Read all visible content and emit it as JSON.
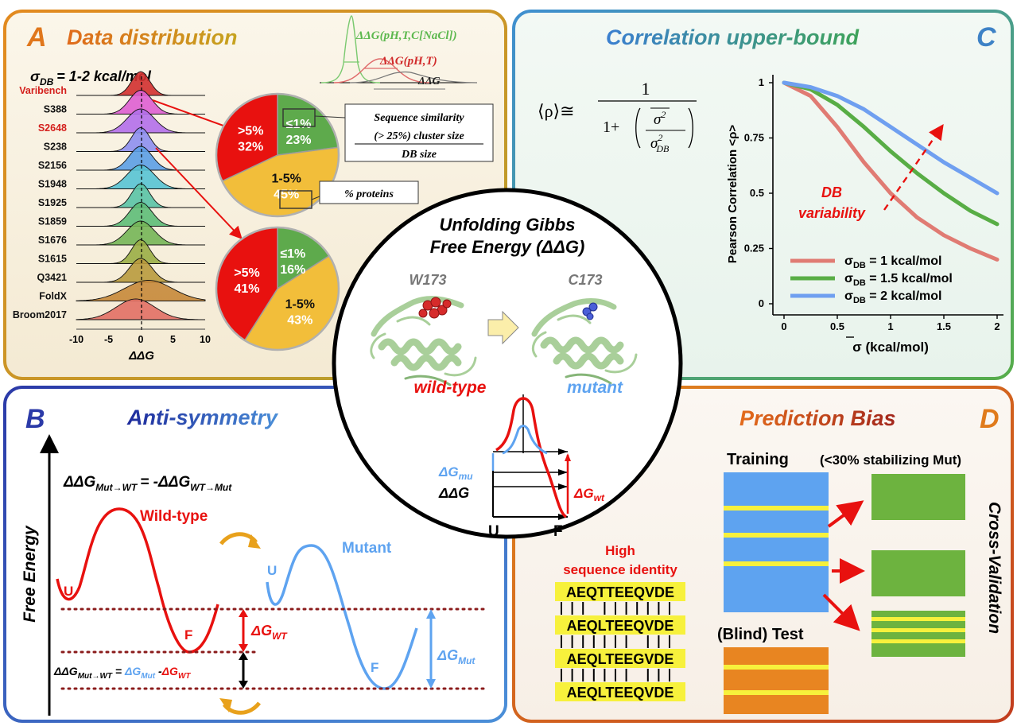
{
  "panel_a": {
    "letter": "A",
    "title": "Data distribution",
    "sigma_db": "σ",
    "sigma_db_sub": "DB",
    "sigma_db_value": "= 1-2 kcal/mol",
    "curve_labels": [
      "ΔΔG(pH,T,C[NaCl])",
      "ΔΔG(pH,T)",
      "ΔΔG"
    ],
    "datasets": [
      "Varibench",
      "S388",
      "S2648",
      "S238",
      "S2156",
      "S1948",
      "S1925",
      "S1859",
      "S1676",
      "S1615",
      "Q3421",
      "FoldX",
      "Broom2017"
    ],
    "highlighted": [
      "Varibench",
      "S2648"
    ],
    "ridge_colors": [
      "#d1302f",
      "#de5fd2",
      "#b36fea",
      "#8d8ff0",
      "#5b9fe6",
      "#56c3d4",
      "#59c3a6",
      "#5dbd78",
      "#74b557",
      "#9aad45",
      "#b99a3d",
      "#c7883a",
      "#e27065"
    ],
    "x_ticks": [
      "-10",
      "-5",
      "0",
      "5",
      "10"
    ],
    "x_label": "ΔΔG",
    "pie1": {
      "slices": [
        {
          "label": ">5%",
          "value": "32%",
          "pct": 32,
          "color": "#e8110f"
        },
        {
          "label": "≤1%",
          "value": "23%",
          "pct": 23,
          "color": "#5eaa4c"
        },
        {
          "label": "1-5%",
          "value": "45%",
          "pct": 45,
          "color": "#f2be3a"
        }
      ]
    },
    "pie2": {
      "slices": [
        {
          "label": ">5%",
          "value": "41%",
          "pct": 41,
          "color": "#e8110f"
        },
        {
          "label": "≤1%",
          "value": "16%",
          "pct": 16,
          "color": "#5eaa4c"
        },
        {
          "label": "1-5%",
          "value": "43%",
          "pct": 43,
          "color": "#f2be3a"
        }
      ]
    },
    "callout_seq": [
      "Sequence similarity",
      "(> 25%) cluster size",
      "DB size"
    ],
    "callout_prot": "% proteins"
  },
  "panel_b": {
    "letter": "B",
    "title": "Anti-symmetry",
    "eq_left": "ΔΔG",
    "eq_left_sub": "Mut→WT",
    "eq_mid": "= -ΔΔG",
    "eq_right_sub": "WT→Mut",
    "y_label": "Free Energy",
    "wt_label": "Wild-type",
    "mut_label": "Mutant",
    "u": "U",
    "f": "F",
    "dg_wt": "ΔG",
    "dg_wt_sub": "WT",
    "dg_mut": "ΔG",
    "dg_mut_sub": "Mut",
    "ddg_eq": [
      "ΔΔG",
      "Mut→WT",
      " = ",
      "ΔG",
      "Mut",
      " -",
      "ΔG",
      "WT"
    ]
  },
  "panel_c": {
    "letter": "C",
    "title": "Correlation upper-bound",
    "formula": [
      "⟨ρ⟩≅",
      "1",
      "1+",
      "σ",
      "2",
      "σ",
      "2",
      "DB"
    ],
    "annotation": [
      "DB",
      "variability"
    ],
    "legend": [
      {
        "label": "σ",
        "sub": "DB",
        "rest": " = 1 kcal/mol",
        "color": "#e07b73"
      },
      {
        "label": "σ",
        "sub": "DB",
        "rest": " = 1.5 kcal/mol",
        "color": "#58ad45"
      },
      {
        "label": "σ",
        "sub": "DB",
        "rest": " = 2 kcal/mol",
        "color": "#6f9ff0"
      }
    ],
    "y_label": "Pearson Correlation <ρ>",
    "x_label": "σ (kcal/mol)",
    "x_ticks": [
      "0",
      "0.5",
      "1",
      "1.5",
      "2"
    ],
    "y_ticks": [
      "0",
      "0.25",
      "0.5",
      "0.75",
      "1"
    ]
  },
  "chart_data": {
    "type": "line",
    "title": "",
    "xlabel": "σ (kcal/mol)",
    "ylabel": "Pearson Correlation <ρ>",
    "xlim": [
      0,
      2
    ],
    "ylim": [
      0,
      1
    ],
    "x": [
      0,
      0.25,
      0.5,
      0.75,
      1.0,
      1.25,
      1.5,
      1.75,
      2.0
    ],
    "series": [
      {
        "name": "σDB = 1 kcal/mol",
        "color": "#e07b73",
        "values": [
          1.0,
          0.94,
          0.8,
          0.64,
          0.5,
          0.39,
          0.31,
          0.25,
          0.2
        ]
      },
      {
        "name": "σDB = 1.5 kcal/mol",
        "color": "#58ad45",
        "values": [
          1.0,
          0.97,
          0.9,
          0.8,
          0.69,
          0.59,
          0.5,
          0.42,
          0.36
        ]
      },
      {
        "name": "σDB = 2 kcal/mol",
        "color": "#6f9ff0",
        "values": [
          1.0,
          0.98,
          0.94,
          0.88,
          0.8,
          0.72,
          0.64,
          0.57,
          0.5
        ]
      }
    ]
  },
  "panel_d": {
    "letter": "D",
    "title": "Prediction Bias",
    "training": "Training",
    "stabilizing": "(<30% stabilizing Mut)",
    "cross_validation": "Cross-Validation",
    "high_identity": [
      "High",
      "sequence identity"
    ],
    "sequences": [
      "AEQTTEEQVDE",
      "AEQLTEEQVDE",
      "AEQLTEEGVDE",
      "AEQLTEEQVDE"
    ],
    "blind_test": "(Blind) Test",
    "colors": {
      "train": "#5ea3f0",
      "stripe": "#f7f13c",
      "cv": "#6db33f",
      "test": "#e88521"
    }
  },
  "center": {
    "title": [
      "Unfolding Gibbs",
      "Free Energy (ΔΔG)"
    ],
    "wt_res": "W173",
    "mut_res": "C173",
    "wt_label": "wild-type",
    "mut_label": "mutant",
    "dg_mu": "ΔG",
    "dg_mu_sub": "mu",
    "ddg": "ΔΔG",
    "dg_wt": "ΔG",
    "dg_wt_sub": "wt",
    "u": "U",
    "f": "F"
  }
}
